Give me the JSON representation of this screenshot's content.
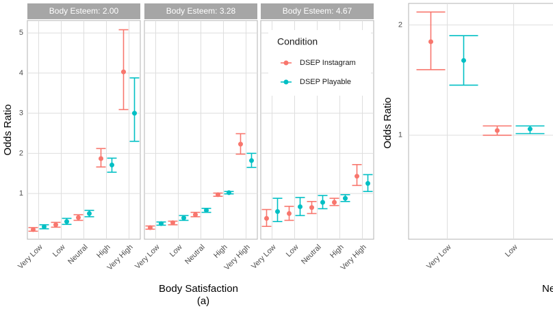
{
  "chart_data": [
    {
      "type": "errorbar",
      "x_label": "Body Satisfaction",
      "caption": "(a)",
      "y_label": "Odds Ratio",
      "ylim": [
        -0.14,
        5.31
      ],
      "yticks": [
        1,
        2,
        3,
        4,
        5
      ],
      "categories": [
        "Very Low",
        "Low",
        "Neutral",
        "High",
        "Very High"
      ],
      "legend_title": "Condition",
      "series": [
        {
          "name": "DSEP Instagram",
          "color": "#F8766D"
        },
        {
          "name": "DSEP Playable",
          "color": "#00BFC4"
        }
      ],
      "facets": [
        {
          "title": "Body Esteem: 2.00",
          "series": [
            {
              "values": [
                0.1,
                0.22,
                0.4,
                1.87,
                4.03
              ],
              "lower": [
                0.06,
                0.16,
                0.33,
                1.66,
                3.09
              ],
              "upper": [
                0.15,
                0.28,
                0.47,
                2.12,
                5.08
              ]
            },
            {
              "values": [
                0.17,
                0.3,
                0.5,
                1.71,
                3.0
              ],
              "lower": [
                0.12,
                0.23,
                0.42,
                1.53,
                2.3
              ],
              "upper": [
                0.22,
                0.38,
                0.58,
                1.88,
                3.88
              ]
            }
          ]
        },
        {
          "title": "Body Esteem: 3.28",
          "series": [
            {
              "values": [
                0.15,
                0.27,
                0.47,
                0.97,
                2.23
              ],
              "lower": [
                0.11,
                0.22,
                0.42,
                0.93,
                1.98
              ],
              "upper": [
                0.19,
                0.31,
                0.53,
                1.01,
                2.49
              ]
            },
            {
              "values": [
                0.25,
                0.39,
                0.58,
                1.02,
                1.82
              ],
              "lower": [
                0.21,
                0.33,
                0.53,
                0.99,
                1.65
              ],
              "upper": [
                0.29,
                0.45,
                0.63,
                1.05,
                2.0
              ]
            }
          ]
        },
        {
          "title": "Body Esteem: 4.67",
          "series": [
            {
              "values": [
                0.38,
                0.5,
                0.65,
                0.78,
                1.43
              ],
              "lower": [
                0.18,
                0.33,
                0.5,
                0.7,
                1.2
              ],
              "upper": [
                0.6,
                0.68,
                0.8,
                0.88,
                1.72
              ]
            },
            {
              "values": [
                0.55,
                0.67,
                0.78,
                0.88,
                1.25
              ],
              "lower": [
                0.3,
                0.45,
                0.62,
                0.8,
                1.05
              ],
              "upper": [
                0.88,
                0.9,
                0.95,
                0.97,
                1.47
              ]
            }
          ]
        }
      ]
    },
    {
      "type": "errorbar",
      "x_label": "Ne",
      "y_label": "Odds Ratio",
      "log_scale": true,
      "ylim": [
        0.52,
        2.29
      ],
      "yticks": [
        1,
        2
      ],
      "categories": [
        "Very Low",
        "Low"
      ],
      "series": [
        {
          "name": "DSEP Instagram",
          "color": "#F8766D",
          "values": [
            1.8,
            1.03
          ],
          "lower": [
            1.51,
            1.0
          ],
          "upper": [
            2.17,
            1.06
          ]
        },
        {
          "name": "DSEP Playable",
          "color": "#00BFC4",
          "values": [
            1.6,
            1.04
          ],
          "lower": [
            1.37,
            1.01
          ],
          "upper": [
            1.87,
            1.06
          ]
        }
      ]
    }
  ]
}
